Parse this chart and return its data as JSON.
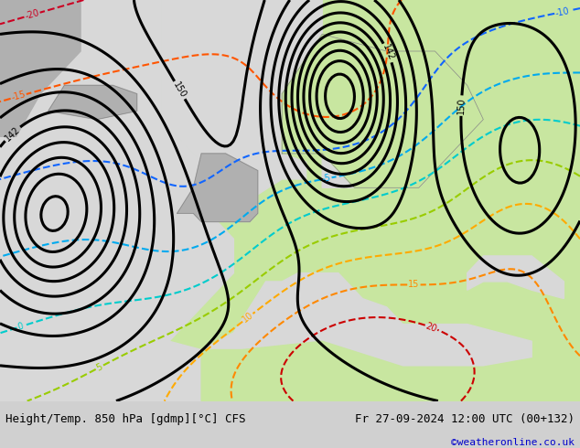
{
  "title_left": "Height/Temp. 850 hPa [gdmp][°C] CFS",
  "title_right": "Fr 27-09-2024 12:00 UTC (00+132)",
  "credit": "©weatheronline.co.uk",
  "credit_color": "#0000cc",
  "fig_width": 6.34,
  "fig_height": 4.9,
  "dpi": 100,
  "land_color": "#c8e6a0",
  "ocean_color": "#d8d8d8",
  "coast_color": "#888888",
  "bottom_bar_color": "#d0d0d0",
  "bottom_text_color": "#000000",
  "font_family": "monospace",
  "font_size_title": 9,
  "font_size_credit": 8,
  "geo_color": "#000000",
  "geo_linewidth": 2.2,
  "geo_label_size": 7,
  "temp_linewidth": 1.5,
  "temp_label_size": 7,
  "lon_min": -30,
  "lon_max": 42,
  "lat_min": 29,
  "lat_max": 76,
  "temp_colors": {
    "-25": "#ff00ff",
    "-20": "#cc0022",
    "-15": "#ff5500",
    "-10": "#1166ff",
    "-5": "#00aaee",
    "0": "#00cccc",
    "5": "#99cc00",
    "10": "#ffaa00",
    "15": "#ff8800",
    "20": "#cc0000"
  }
}
